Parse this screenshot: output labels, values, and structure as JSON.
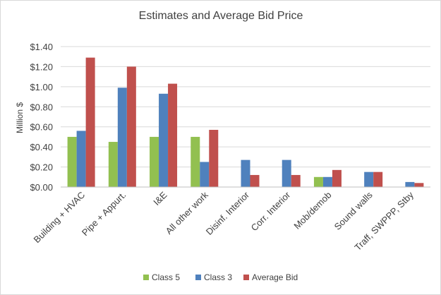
{
  "chart_data": {
    "type": "bar",
    "title": "Estimates and Average Bid Price",
    "xlabel": "",
    "ylabel": "Million $",
    "ylim": [
      0,
      1.4
    ],
    "yticks": [
      "$0.00",
      "$0.20",
      "$0.40",
      "$0.60",
      "$0.80",
      "$1.00",
      "$1.20",
      "$1.40"
    ],
    "grid": true,
    "legend_position": "bottom",
    "categories": [
      "Building + HVAC",
      "Pipe + Appurt.",
      "I&E",
      "All other work",
      "Disinf. Interior",
      "Corr. Interior",
      "Mob/demob",
      "Sound walls",
      "Traff, SWPPP, Stby"
    ],
    "series": [
      {
        "name": "Class 5",
        "color": "#92c050",
        "values": [
          0.5,
          0.45,
          0.5,
          0.5,
          0,
          0,
          0.1,
          0,
          0
        ]
      },
      {
        "name": "Class 3",
        "color": "#4f81bd",
        "values": [
          0.56,
          0.99,
          0.93,
          0.25,
          0.27,
          0.27,
          0.1,
          0.15,
          0.05
        ]
      },
      {
        "name": "Average Bid",
        "color": "#c0504d",
        "values": [
          1.29,
          1.2,
          1.03,
          0.57,
          0.12,
          0.12,
          0.17,
          0.15,
          0.04
        ]
      }
    ]
  }
}
